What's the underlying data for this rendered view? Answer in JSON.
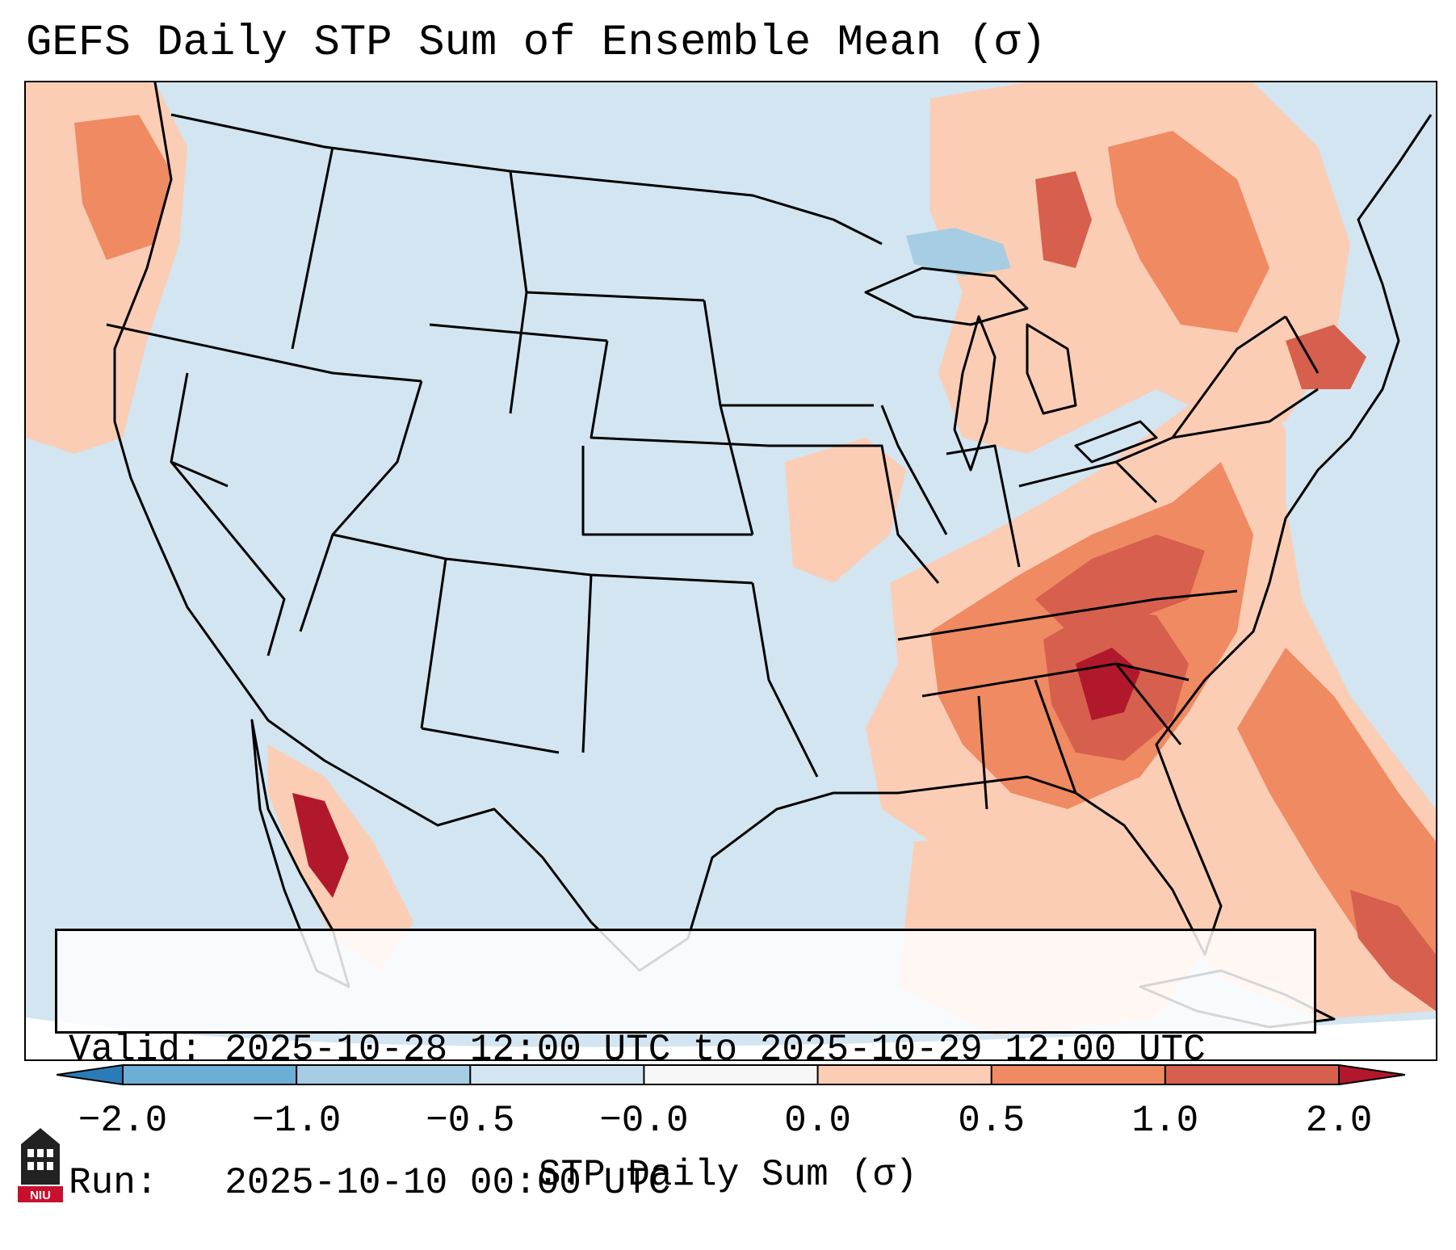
{
  "title": "GEFS Daily STP Sum of Ensemble Mean (σ)",
  "info": {
    "valid": "Valid: 2025-10-28 12:00 UTC to 2025-10-29 12:00 UTC",
    "run": "Run:   2025-10-10 00:00 UTC"
  },
  "colorbar": {
    "label": "STP Daily Sum (σ)",
    "ticks": [
      "−2.0",
      "−1.0",
      "−0.5",
      "−0.0",
      "0.0",
      "0.5",
      "1.0",
      "2.0"
    ],
    "colors": [
      "#2c7bb6",
      "#6baed6",
      "#a6cde3",
      "#d2e5f0",
      "#f7f7f7",
      "#fbcdb4",
      "#ef8a62",
      "#d6604d",
      "#b2182b"
    ],
    "extend": "both"
  },
  "map": {
    "region": "Continental United States",
    "ocean_color": "#d2e5f0",
    "positive_zones": [
      {
        "name": "Southeast / Carolinas",
        "level": "1.0 to 2.0"
      },
      {
        "name": "Georgia",
        "level": "above 2.0"
      },
      {
        "name": "Virginia",
        "level": "1.0 to 2.0"
      },
      {
        "name": "Northeast / New England",
        "level": "0.5 to 1.0"
      },
      {
        "name": "Southern Ontario / Quebec",
        "level": "0.5 to 2.0"
      },
      {
        "name": "Pacific Northwest offshore",
        "level": "0.5 to 1.0"
      },
      {
        "name": "Gulf of California",
        "level": "above 2.0"
      },
      {
        "name": "Western Atlantic / Bahamas",
        "level": "0.5 to 2.0"
      }
    ],
    "negative_zones": [
      {
        "name": "Lake Superior",
        "level": "-0.5 to -1.0"
      }
    ]
  },
  "logo": {
    "text": "NIU",
    "color": "#c8102e"
  }
}
